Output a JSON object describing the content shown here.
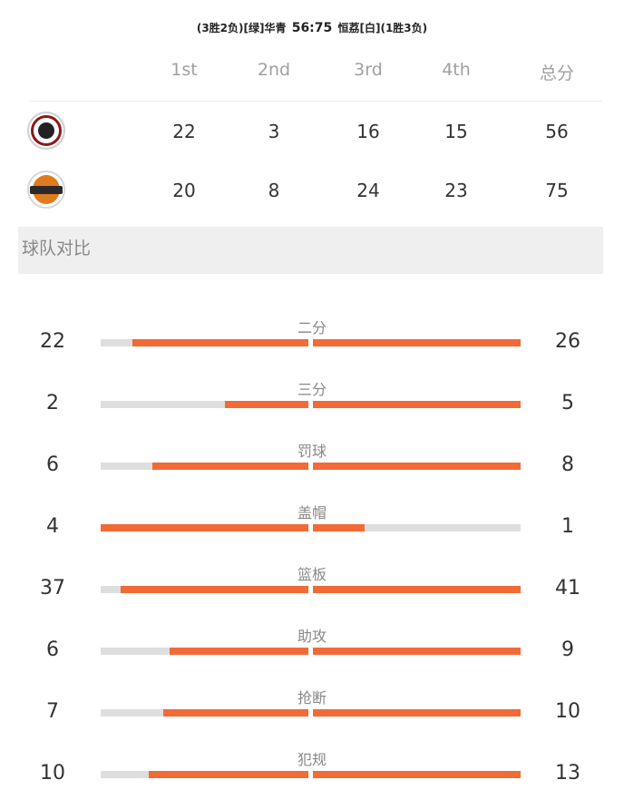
{
  "header": {
    "home_record": "(3胜2负)",
    "home_color": "[绿]",
    "home_team": "华青",
    "score": "56:75",
    "away_team": "恒荔",
    "away_color": "[白]",
    "away_record": "(1胜3负)"
  },
  "quarters": {
    "headers": [
      "1st",
      "2nd",
      "3rd",
      "4th",
      "总分"
    ],
    "home": [
      "22",
      "3",
      "16",
      "15",
      "56"
    ],
    "away": [
      "20",
      "8",
      "24",
      "23",
      "75"
    ]
  },
  "section_title": "球队对比",
  "colors": {
    "bar_fill": "#f26a36",
    "bar_track": "#dedede"
  },
  "stats": [
    {
      "label": "二分",
      "left": "22",
      "right": "26",
      "left_frac": 0.846,
      "right_frac": 1.0
    },
    {
      "label": "三分",
      "left": "2",
      "right": "5",
      "left_frac": 0.4,
      "right_frac": 1.0
    },
    {
      "label": "罚球",
      "left": "6",
      "right": "8",
      "left_frac": 0.75,
      "right_frac": 1.0
    },
    {
      "label": "盖帽",
      "left": "4",
      "right": "1",
      "left_frac": 1.0,
      "right_frac": 0.25
    },
    {
      "label": "篮板",
      "left": "37",
      "right": "41",
      "left_frac": 0.902,
      "right_frac": 1.0
    },
    {
      "label": "助攻",
      "left": "6",
      "right": "9",
      "left_frac": 0.667,
      "right_frac": 1.0
    },
    {
      "label": "抢断",
      "left": "7",
      "right": "10",
      "left_frac": 0.7,
      "right_frac": 1.0
    },
    {
      "label": "犯规",
      "left": "10",
      "right": "13",
      "left_frac": 0.769,
      "right_frac": 1.0
    }
  ]
}
